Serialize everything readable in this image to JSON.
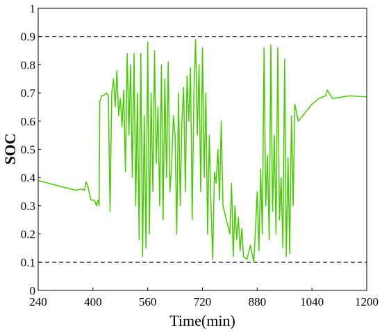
{
  "chart_data": {
    "type": "line",
    "title": "",
    "xlabel": "Time(min)",
    "ylabel": "SOC",
    "xlim": [
      240,
      1200
    ],
    "ylim": [
      0,
      1
    ],
    "xticks": [
      240,
      400,
      560,
      720,
      880,
      1040,
      1200
    ],
    "yticks": [
      0,
      0.1,
      0.2,
      0.3,
      0.4,
      0.5,
      0.6,
      0.7,
      0.8,
      0.9,
      1
    ],
    "grid": false,
    "legend": "none",
    "reference_lines": [
      {
        "y": 0.9,
        "style": "dashed",
        "color": "#000000"
      },
      {
        "y": 0.1,
        "style": "dashed",
        "color": "#000000"
      }
    ],
    "series": [
      {
        "color": "#44cc00",
        "x": [
          240,
          300,
          350,
          365,
          375,
          380,
          385,
          392,
          395,
          400,
          405,
          410,
          415,
          418,
          420,
          425,
          430,
          440,
          445,
          450,
          455,
          460,
          465,
          470,
          475,
          480,
          485,
          490,
          495,
          500,
          505,
          510,
          515,
          520,
          525,
          530,
          535,
          540,
          545,
          550,
          555,
          560,
          565,
          570,
          575,
          580,
          585,
          590,
          595,
          600,
          605,
          610,
          615,
          620,
          625,
          630,
          635,
          640,
          645,
          650,
          655,
          660,
          665,
          670,
          675,
          680,
          685,
          690,
          695,
          700,
          705,
          710,
          715,
          720,
          725,
          730,
          735,
          740,
          745,
          750,
          755,
          760,
          765,
          770,
          775,
          780,
          790,
          800,
          805,
          810,
          815,
          820,
          825,
          830,
          835,
          840,
          850,
          860,
          870,
          875,
          880,
          885,
          890,
          895,
          900,
          905,
          910,
          915,
          920,
          925,
          930,
          935,
          940,
          945,
          950,
          955,
          960,
          965,
          970,
          975,
          980,
          985,
          990,
          1000,
          1020,
          1040,
          1060,
          1080,
          1085,
          1100,
          1150,
          1200
        ],
        "y": [
          0.39,
          0.37,
          0.355,
          0.36,
          0.355,
          0.385,
          0.37,
          0.33,
          0.32,
          0.32,
          0.32,
          0.3,
          0.32,
          0.3,
          0.67,
          0.69,
          0.69,
          0.7,
          0.69,
          0.28,
          0.7,
          0.75,
          0.65,
          0.78,
          0.62,
          0.68,
          0.58,
          0.71,
          0.42,
          0.84,
          0.55,
          0.8,
          0.4,
          0.84,
          0.3,
          0.7,
          0.18,
          0.84,
          0.12,
          0.62,
          0.15,
          0.88,
          0.2,
          0.7,
          0.35,
          0.85,
          0.45,
          0.65,
          0.3,
          0.8,
          0.25,
          0.75,
          0.4,
          0.81,
          0.35,
          0.45,
          0.62,
          0.55,
          0.2,
          0.7,
          0.3,
          0.6,
          0.72,
          0.35,
          0.76,
          0.6,
          0.79,
          0.25,
          0.7,
          0.89,
          0.55,
          0.8,
          0.35,
          0.86,
          0.4,
          0.7,
          0.2,
          0.55,
          0.3,
          0.11,
          0.42,
          0.38,
          0.5,
          0.32,
          0.6,
          0.3,
          0.25,
          0.2,
          0.38,
          0.12,
          0.3,
          0.18,
          0.26,
          0.14,
          0.22,
          0.12,
          0.11,
          0.16,
          0.1,
          0.22,
          0.35,
          0.14,
          0.43,
          0.2,
          0.86,
          0.3,
          0.48,
          0.18,
          0.87,
          0.28,
          0.55,
          0.2,
          0.86,
          0.25,
          0.4,
          0.15,
          0.82,
          0.12,
          0.47,
          0.13,
          0.62,
          0.3,
          0.66,
          0.6,
          0.63,
          0.66,
          0.68,
          0.69,
          0.71,
          0.68,
          0.69,
          0.686
        ]
      }
    ]
  }
}
